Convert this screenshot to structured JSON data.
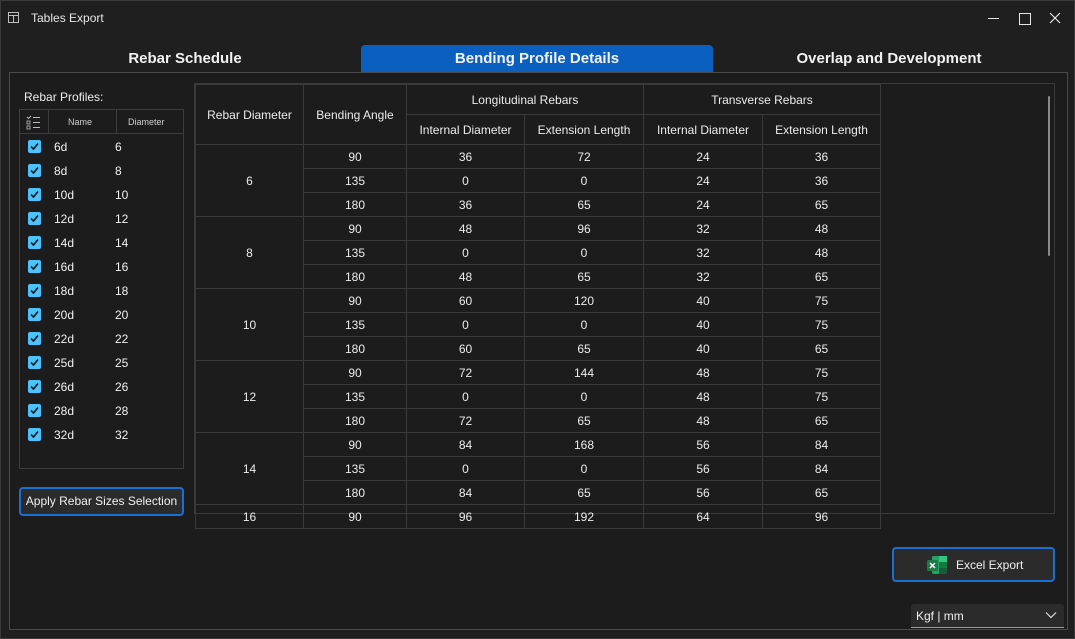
{
  "window": {
    "title": "Tables Export"
  },
  "tabs": [
    {
      "label": "Rebar Schedule",
      "active": false
    },
    {
      "label": "Bending Profile Details",
      "active": true
    },
    {
      "label": "Overlap and Development",
      "active": false
    }
  ],
  "profiles": {
    "label": "Rebar Profiles:",
    "columns": {
      "name": "Name",
      "diameter": "Diameter"
    },
    "items": [
      {
        "name": "6d",
        "diameter": "6",
        "checked": true
      },
      {
        "name": "8d",
        "diameter": "8",
        "checked": true
      },
      {
        "name": "10d",
        "diameter": "10",
        "checked": true
      },
      {
        "name": "12d",
        "diameter": "12",
        "checked": true
      },
      {
        "name": "14d",
        "diameter": "14",
        "checked": true
      },
      {
        "name": "16d",
        "diameter": "16",
        "checked": true
      },
      {
        "name": "18d",
        "diameter": "18",
        "checked": true
      },
      {
        "name": "20d",
        "diameter": "20",
        "checked": true
      },
      {
        "name": "22d",
        "diameter": "22",
        "checked": true
      },
      {
        "name": "25d",
        "diameter": "25",
        "checked": true
      },
      {
        "name": "26d",
        "diameter": "26",
        "checked": true
      },
      {
        "name": "28d",
        "diameter": "28",
        "checked": true
      },
      {
        "name": "32d",
        "diameter": "32",
        "checked": true
      }
    ],
    "apply_label": "Apply Rebar Sizes Selection"
  },
  "table": {
    "headers": {
      "rebar_diameter": "Rebar Diameter",
      "bending_angle": "Bending Angle",
      "longitudinal": "Longitudinal Rebars",
      "transverse": "Transverse Rebars",
      "internal_diameter": "Internal Diameter",
      "extension_length": "Extension Length"
    },
    "groups": [
      {
        "diameter": "6",
        "rows": [
          [
            "90",
            "36",
            "72",
            "24",
            "36"
          ],
          [
            "135",
            "0",
            "0",
            "24",
            "36"
          ],
          [
            "180",
            "36",
            "65",
            "24",
            "65"
          ]
        ]
      },
      {
        "diameter": "8",
        "rows": [
          [
            "90",
            "48",
            "96",
            "32",
            "48"
          ],
          [
            "135",
            "0",
            "0",
            "32",
            "48"
          ],
          [
            "180",
            "48",
            "65",
            "32",
            "65"
          ]
        ]
      },
      {
        "diameter": "10",
        "rows": [
          [
            "90",
            "60",
            "120",
            "40",
            "75"
          ],
          [
            "135",
            "0",
            "0",
            "40",
            "75"
          ],
          [
            "180",
            "60",
            "65",
            "40",
            "65"
          ]
        ]
      },
      {
        "diameter": "12",
        "rows": [
          [
            "90",
            "72",
            "144",
            "48",
            "75"
          ],
          [
            "135",
            "0",
            "0",
            "48",
            "75"
          ],
          [
            "180",
            "72",
            "65",
            "48",
            "65"
          ]
        ]
      },
      {
        "diameter": "14",
        "rows": [
          [
            "90",
            "84",
            "168",
            "56",
            "84"
          ],
          [
            "135",
            "0",
            "0",
            "56",
            "84"
          ],
          [
            "180",
            "84",
            "65",
            "56",
            "65"
          ]
        ]
      },
      {
        "diameter": "16",
        "rows": [
          [
            "90",
            "96",
            "192",
            "64",
            "96"
          ]
        ]
      }
    ]
  },
  "export": {
    "label": "Excel Export",
    "icon": "excel-icon",
    "icon_color": "#1d7a45"
  },
  "units": {
    "selected": "Kgf | mm"
  },
  "colors": {
    "accent": "#0a5fbf",
    "checkbox": "#4cc2ff"
  }
}
